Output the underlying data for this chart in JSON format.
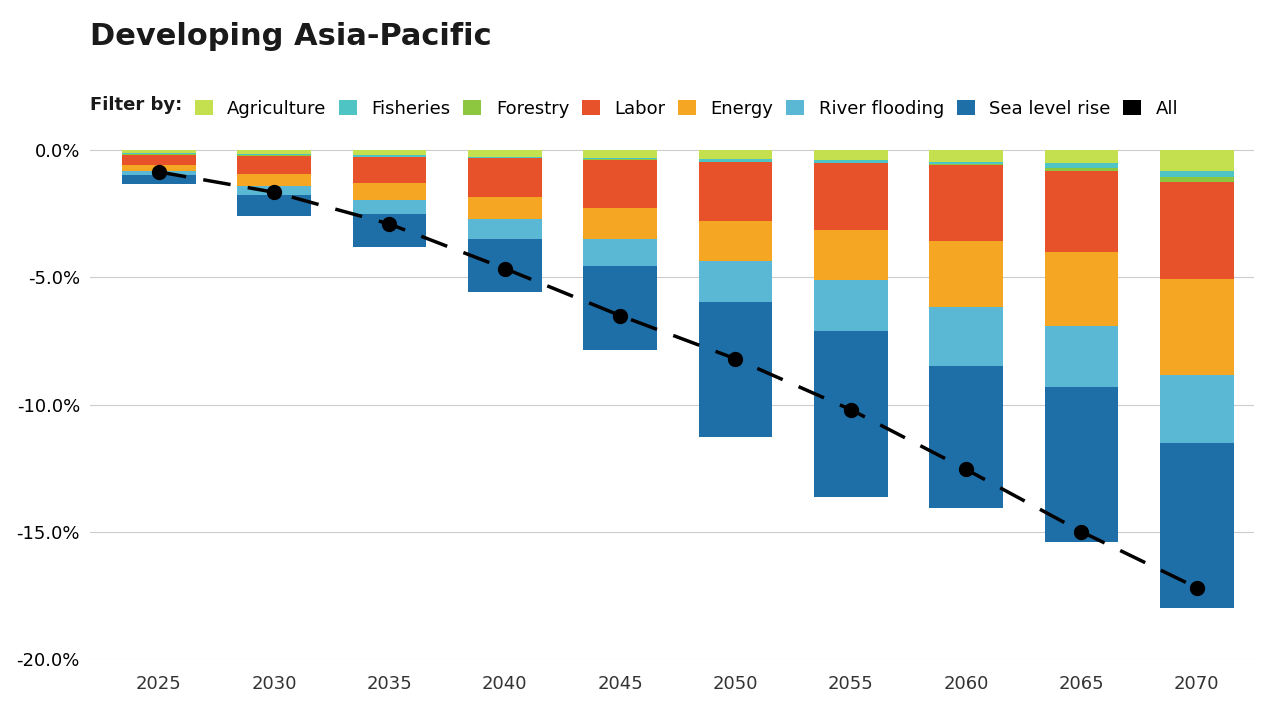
{
  "title": "Developing Asia-Pacific",
  "years": [
    2025,
    2030,
    2035,
    2040,
    2045,
    2050,
    2055,
    2060,
    2065,
    2070
  ],
  "categories": [
    "Agriculture",
    "Fisheries",
    "Forestry",
    "Labor",
    "Energy",
    "River flooding",
    "Sea level rise"
  ],
  "colors": [
    "#c5e04e",
    "#4ec4c4",
    "#8dc63f",
    "#e8522a",
    "#f5a623",
    "#5bb8d4",
    "#1e6fa8"
  ],
  "bar_data": {
    "Agriculture": [
      -0.1,
      -0.15,
      -0.2,
      -0.25,
      -0.3,
      -0.35,
      -0.4,
      -0.45,
      -0.5,
      -0.8
    ],
    "Fisheries": [
      -0.05,
      -0.05,
      -0.05,
      -0.05,
      -0.05,
      -0.1,
      -0.1,
      -0.1,
      -0.2,
      -0.25
    ],
    "Forestry": [
      -0.02,
      -0.02,
      -0.02,
      -0.02,
      -0.02,
      -0.02,
      -0.02,
      -0.02,
      -0.1,
      -0.2
    ],
    "Labor": [
      -0.4,
      -0.7,
      -1.0,
      -1.5,
      -1.9,
      -2.3,
      -2.6,
      -3.0,
      -3.2,
      -3.8
    ],
    "Energy": [
      -0.25,
      -0.5,
      -0.7,
      -0.9,
      -1.2,
      -1.6,
      -2.0,
      -2.6,
      -2.9,
      -3.8
    ],
    "River flooding": [
      -0.15,
      -0.35,
      -0.55,
      -0.75,
      -1.1,
      -1.6,
      -2.0,
      -2.3,
      -2.4,
      -2.65
    ],
    "Sea level rise": [
      -0.35,
      -0.8,
      -1.3,
      -2.1,
      -3.3,
      -5.3,
      -6.5,
      -5.6,
      -6.1,
      -6.5
    ]
  },
  "dot_values": [
    -0.85,
    -1.65,
    -2.9,
    -4.65,
    -6.5,
    -8.2,
    -10.2,
    -12.55,
    -15.0,
    -17.2
  ],
  "ylim": [
    -20.0,
    0.5
  ],
  "yticks": [
    0.0,
    -5.0,
    -10.0,
    -15.0,
    -20.0
  ],
  "background_color": "#ffffff",
  "bar_width": 3.2,
  "legend_label": "Filter by:"
}
